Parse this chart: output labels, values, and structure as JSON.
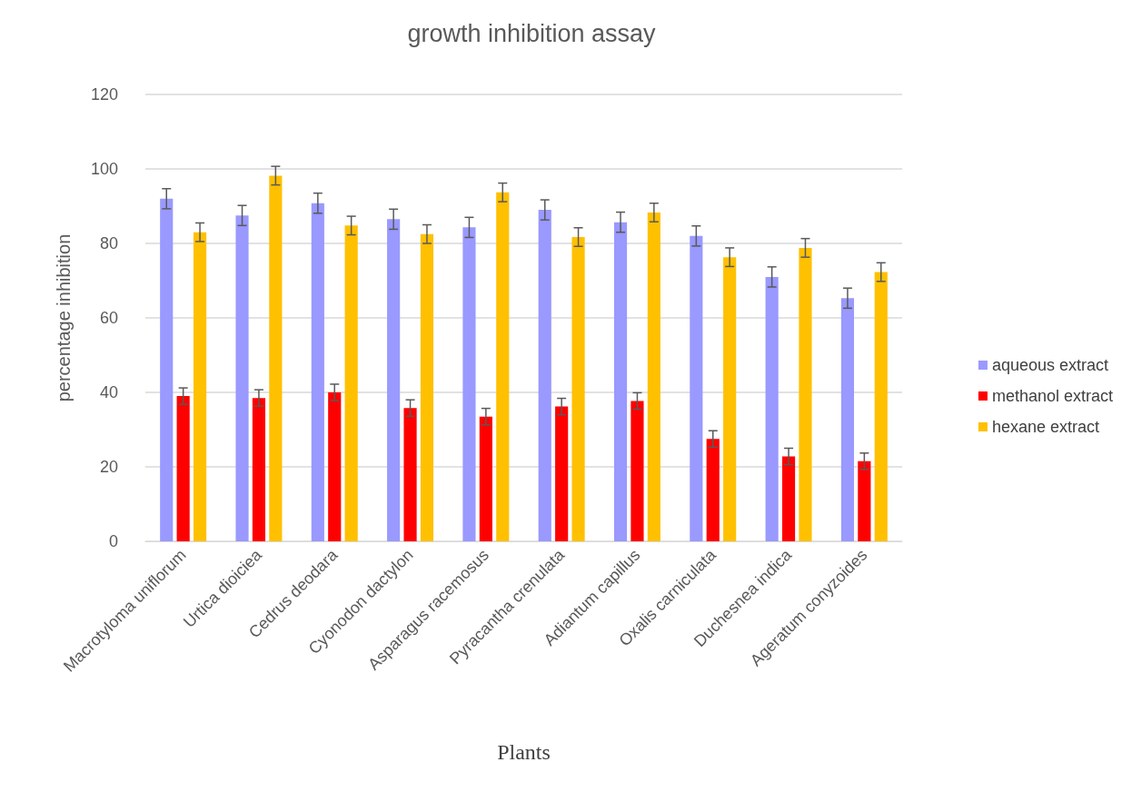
{
  "chart_data": {
    "type": "bar",
    "title": "growth inhibition assay",
    "xlabel": "Plants",
    "ylabel": "percentage inhibition",
    "categories": [
      "Macrotyloma uniflorum",
      "Urtica dioiciea",
      "Cedrus deodara",
      "Cyonodon dactylon",
      "Asparagus racemosus",
      "Pyracantha crenulata",
      "Adiantum capillus",
      "Oxalis carniculata",
      "Duchesnea indica",
      "Ageratum conyzoides"
    ],
    "series": [
      {
        "name": "aqueous extract",
        "color": "#9999ff",
        "values": [
          92,
          87.5,
          90.8,
          86.5,
          84.3,
          89,
          85.7,
          82,
          71,
          65.3
        ],
        "errors": [
          2.7,
          2.7,
          2.7,
          2.7,
          2.7,
          2.7,
          2.7,
          2.7,
          2.7,
          2.7
        ]
      },
      {
        "name": "methanol extract",
        "color": "#ff0000",
        "values": [
          39,
          38.5,
          40,
          35.8,
          33.5,
          36.2,
          37.7,
          27.5,
          22.8,
          21.5
        ],
        "errors": [
          2.2,
          2.2,
          2.2,
          2.2,
          2.2,
          2.2,
          2.2,
          2.2,
          2.2,
          2.2
        ]
      },
      {
        "name": "hexane extract",
        "color": "#ffc000",
        "values": [
          83,
          98.2,
          84.8,
          82.5,
          93.7,
          81.7,
          88.3,
          76.3,
          78.8,
          72.3
        ],
        "errors": [
          2.5,
          2.5,
          2.5,
          2.5,
          2.5,
          2.5,
          2.5,
          2.5,
          2.5,
          2.5
        ]
      }
    ],
    "ylim": [
      0,
      120
    ],
    "yticks": [
      0,
      20,
      40,
      60,
      80,
      100,
      120
    ],
    "grid": "y",
    "legend": "right"
  }
}
